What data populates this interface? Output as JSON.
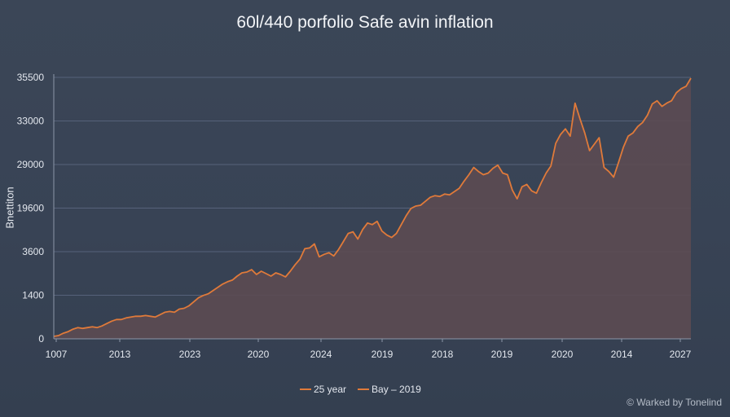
{
  "chart_data": {
    "type": "area",
    "title": "60l/440 porfolio Safe avin inflation",
    "ylabel": "Bnettiton",
    "xlabel": "",
    "x_ticks": [
      "1007",
      "2013",
      "2023",
      "2020",
      "2024",
      "2019",
      "2018",
      "2019",
      "2020",
      "2014",
      "2027"
    ],
    "y_ticks": [
      "0",
      "1400",
      "3600",
      "19600",
      "29000",
      "33000",
      "35500"
    ],
    "grid": "horizontal",
    "legend_position": "bottom-center",
    "legend": [
      "25 year",
      "Bay – 2019"
    ],
    "series": [
      {
        "name": "25 year",
        "color": "#e07a3a",
        "fill": "#5b4b53",
        "values": [
          0.3,
          0.4,
          0.7,
          0.9,
          1.2,
          1.4,
          1.3,
          1.4,
          1.5,
          1.4,
          1.6,
          1.9,
          2.2,
          2.4,
          2.4,
          2.6,
          2.7,
          2.8,
          2.8,
          2.9,
          2.8,
          2.7,
          3.0,
          3.3,
          3.4,
          3.3,
          3.7,
          3.8,
          4.1,
          4.6,
          5.1,
          5.4,
          5.6,
          6.0,
          6.4,
          6.8,
          7.1,
          7.3,
          7.8,
          8.2,
          8.3,
          8.6,
          8.0,
          8.4,
          8.1,
          7.8,
          8.2,
          8.0,
          7.7,
          8.4,
          9.2,
          9.9,
          11.2,
          11.3,
          11.8,
          10.2,
          10.5,
          10.7,
          10.3,
          11.1,
          12.1,
          13.1,
          13.3,
          12.4,
          13.6,
          14.4,
          14.2,
          14.6,
          13.4,
          12.9,
          12.6,
          13.1,
          14.2,
          15.3,
          16.2,
          16.5,
          16.6,
          17.1,
          17.6,
          17.8,
          17.7,
          18.0,
          17.9,
          18.3,
          18.7,
          19.6,
          20.4,
          21.3,
          20.8,
          20.4,
          20.6,
          21.2,
          21.6,
          20.6,
          20.4,
          18.5,
          17.4,
          18.9,
          19.2,
          18.4,
          18.1,
          19.4,
          20.6,
          21.5,
          24.3,
          25.4,
          26.1,
          25.2,
          29.3,
          27.4,
          25.6,
          23.4,
          24.2,
          25.0,
          21.3,
          20.8,
          20.1,
          21.9,
          23.8,
          25.2,
          25.6,
          26.4,
          26.9,
          27.8,
          29.2,
          29.6,
          28.9,
          29.3,
          29.6,
          30.6,
          31.1,
          31.4,
          32.4
        ]
      }
    ]
  },
  "watermark": "© Warked by Tonelind"
}
